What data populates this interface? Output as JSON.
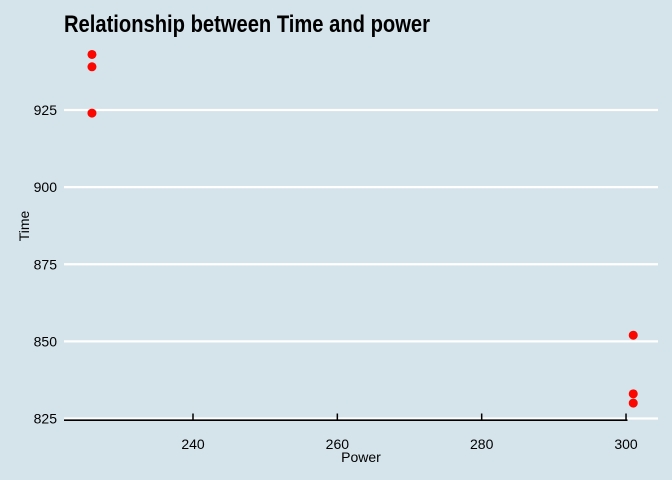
{
  "chart_data": {
    "type": "scatter",
    "title": "Relationship between Time and power",
    "xlabel": "Power",
    "ylabel": "Time",
    "x_ticks": [
      240,
      260,
      280,
      300
    ],
    "y_ticks": [
      825,
      850,
      875,
      900,
      925
    ],
    "xlim": [
      222,
      305
    ],
    "ylim": [
      824,
      949
    ],
    "grid": "horizontal-major-only",
    "legend": "none",
    "points": [
      {
        "x": 226,
        "y": 943
      },
      {
        "x": 226,
        "y": 939
      },
      {
        "x": 226,
        "y": 924
      },
      {
        "x": 301,
        "y": 852
      },
      {
        "x": 301,
        "y": 833
      },
      {
        "x": 301,
        "y": 830
      }
    ],
    "colors": {
      "background": "#d5e3ea",
      "gridline": "#ffffff",
      "axis": "#000000",
      "text": "#000000",
      "point": "#fb0702"
    }
  }
}
